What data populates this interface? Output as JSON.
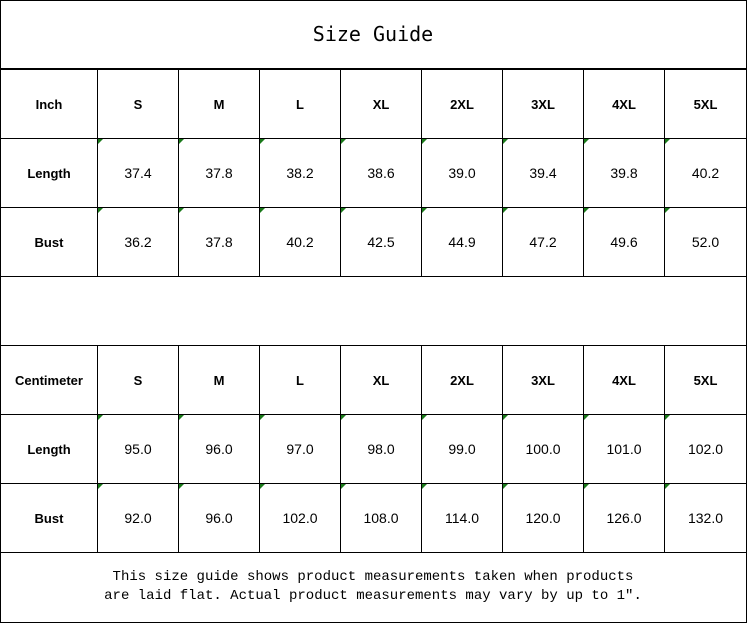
{
  "title": "Size Guide",
  "accent_marker_color": "#1a7a1a",
  "tables": [
    {
      "unit": "Inch",
      "sizes": [
        "S",
        "M",
        "L",
        "XL",
        "2XL",
        "3XL",
        "4XL",
        "5XL"
      ],
      "rows": [
        {
          "label": "Length",
          "values": [
            "37.4",
            "37.8",
            "38.2",
            "38.6",
            "39.0",
            "39.4",
            "39.8",
            "40.2"
          ]
        },
        {
          "label": "Bust",
          "values": [
            "36.2",
            "37.8",
            "40.2",
            "42.5",
            "44.9",
            "47.2",
            "49.6",
            "52.0"
          ]
        }
      ]
    },
    {
      "unit": "Centimeter",
      "sizes": [
        "S",
        "M",
        "L",
        "XL",
        "2XL",
        "3XL",
        "4XL",
        "5XL"
      ],
      "rows": [
        {
          "label": "Length",
          "values": [
            "95.0",
            "96.0",
            "97.0",
            "98.0",
            "99.0",
            "100.0",
            "101.0",
            "102.0"
          ]
        },
        {
          "label": "Bust",
          "values": [
            "92.0",
            "96.0",
            "102.0",
            "108.0",
            "114.0",
            "120.0",
            "126.0",
            "132.0"
          ]
        }
      ]
    }
  ],
  "note": {
    "line1": "This size guide shows product measurements taken when products",
    "line2": "are laid flat. Actual product measurements may vary by up to 1″."
  }
}
